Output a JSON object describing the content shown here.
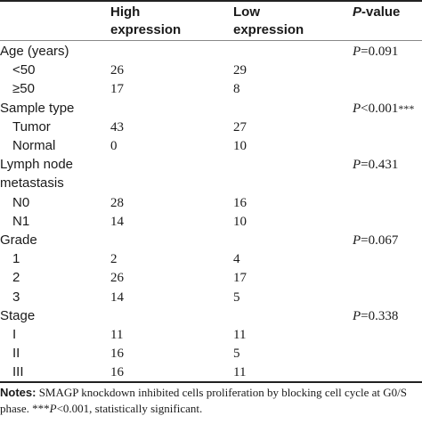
{
  "header": {
    "high_l1": "High",
    "high_l2": "expression",
    "low_l1": "Low",
    "low_l2": "expression",
    "p_italic": "P",
    "p_rest": "-value"
  },
  "rows": [
    {
      "label": "Age (years)",
      "high": "",
      "low": "",
      "p": "=0.091",
      "p_prefix": "P",
      "p_suffix": ""
    },
    {
      "label": "<50",
      "high": "26",
      "low": "29",
      "p": "",
      "p_prefix": "",
      "p_suffix": ""
    },
    {
      "label": "≥50",
      "high": "17",
      "low": "8",
      "p": "",
      "p_prefix": "",
      "p_suffix": ""
    },
    {
      "label": "Sample type",
      "high": "",
      "low": "",
      "p": "<0.001",
      "p_prefix": "P",
      "p_suffix": "***"
    },
    {
      "label": "Tumor",
      "high": "43",
      "low": "27",
      "p": "",
      "p_prefix": "",
      "p_suffix": ""
    },
    {
      "label": "Normal",
      "high": "0",
      "low": "10",
      "p": "",
      "p_prefix": "",
      "p_suffix": ""
    },
    {
      "label": "Lymph node",
      "high": "",
      "low": "",
      "p": "=0.431",
      "p_prefix": "P",
      "p_suffix": ""
    },
    {
      "label": "metastasis",
      "high": "",
      "low": "",
      "p": "",
      "p_prefix": "",
      "p_suffix": ""
    },
    {
      "label": "N0",
      "high": "28",
      "low": "16",
      "p": "",
      "p_prefix": "",
      "p_suffix": ""
    },
    {
      "label": "N1",
      "high": "14",
      "low": "10",
      "p": "",
      "p_prefix": "",
      "p_suffix": ""
    },
    {
      "label": "Grade",
      "high": "",
      "low": "",
      "p": "=0.067",
      "p_prefix": "P",
      "p_suffix": ""
    },
    {
      "label": "1",
      "high": "2",
      "low": "4",
      "p": "",
      "p_prefix": "",
      "p_suffix": ""
    },
    {
      "label": "2",
      "high": "26",
      "low": "17",
      "p": "",
      "p_prefix": "",
      "p_suffix": ""
    },
    {
      "label": "3",
      "high": "14",
      "low": "5",
      "p": "",
      "p_prefix": "",
      "p_suffix": ""
    },
    {
      "label": "Stage",
      "high": "",
      "low": "",
      "p": "=0.338",
      "p_prefix": "P",
      "p_suffix": ""
    },
    {
      "label": "I",
      "high": "11",
      "low": "11",
      "p": "",
      "p_prefix": "",
      "p_suffix": ""
    },
    {
      "label": "II",
      "high": "16",
      "low": "5",
      "p": "",
      "p_prefix": "",
      "p_suffix": ""
    },
    {
      "label": "III",
      "high": "16",
      "low": "11",
      "p": "",
      "p_prefix": "",
      "p_suffix": ""
    }
  ],
  "notes": {
    "label": "Notes:",
    "text1": " SMAGP knockdown inhibited cells proliferation by blocking cell cycle at G0/S phase. ",
    "stars": "***",
    "p": "P",
    "text2": "<0.001, statistically significant."
  }
}
